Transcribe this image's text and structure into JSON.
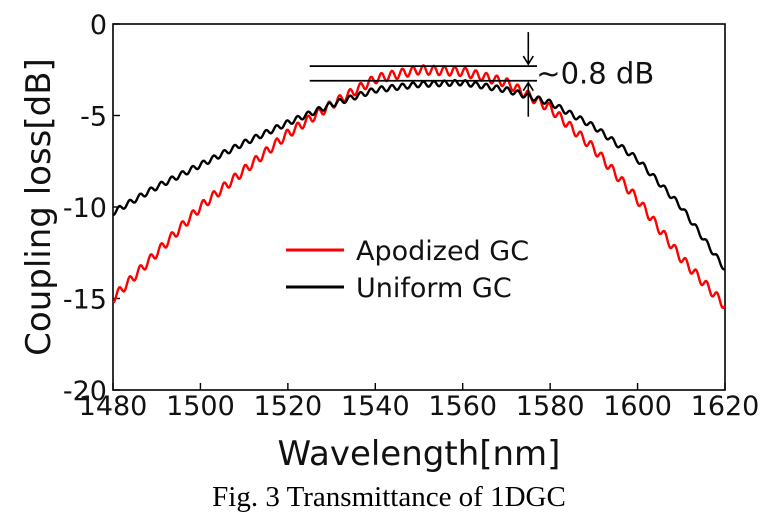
{
  "chart_data": {
    "type": "line",
    "title": "",
    "xlabel": "Wavelength[nm]",
    "ylabel": "Coupling loss[dB]",
    "xlim": [
      1480,
      1620
    ],
    "ylim": [
      -20,
      0
    ],
    "xticks": [
      1480,
      1500,
      1520,
      1540,
      1560,
      1580,
      1600,
      1620
    ],
    "yticks": [
      0,
      -5,
      -10,
      -15,
      -20
    ],
    "xtick_labels": [
      "1480",
      "1500",
      "1520",
      "1540",
      "1560",
      "1580",
      "1600",
      "1620"
    ],
    "ytick_labels": [
      "0",
      "-5",
      "-10",
      "-15",
      "-20"
    ],
    "grid": false,
    "legend_position": "center",
    "series": [
      {
        "name": "Apodized GC",
        "color": "#ff0000",
        "ripple_amplitude_db": 0.25,
        "ripple_period_nm": 2.4,
        "x": [
          1480,
          1490,
          1500,
          1510,
          1520,
          1530,
          1540,
          1550,
          1560,
          1570,
          1580,
          1590,
          1600,
          1610,
          1620
        ],
        "y": [
          -15.0,
          -12.5,
          -10.0,
          -8.0,
          -6.0,
          -4.4,
          -3.0,
          -2.5,
          -2.6,
          -3.2,
          -4.6,
          -6.8,
          -9.6,
          -12.8,
          -15.4
        ]
      },
      {
        "name": "Uniform GC",
        "color": "#000000",
        "ripple_amplitude_db": 0.15,
        "ripple_period_nm": 2.4,
        "x": [
          1480,
          1490,
          1500,
          1510,
          1520,
          1530,
          1540,
          1550,
          1560,
          1570,
          1580,
          1590,
          1600,
          1610,
          1620
        ],
        "y": [
          -10.3,
          -8.9,
          -7.7,
          -6.5,
          -5.4,
          -4.4,
          -3.6,
          -3.3,
          -3.2,
          -3.6,
          -4.3,
          -5.6,
          -7.4,
          -10.0,
          -13.4
        ]
      }
    ],
    "annotations": [
      {
        "text": "~0.8 dB",
        "kind": "difference-marker",
        "x_range": [
          1525,
          1577
        ],
        "y_levels": [
          -2.3,
          -3.1
        ],
        "arrow_x": 1575
      }
    ]
  },
  "caption": "Fig. 3 Transmittance of 1DGC"
}
